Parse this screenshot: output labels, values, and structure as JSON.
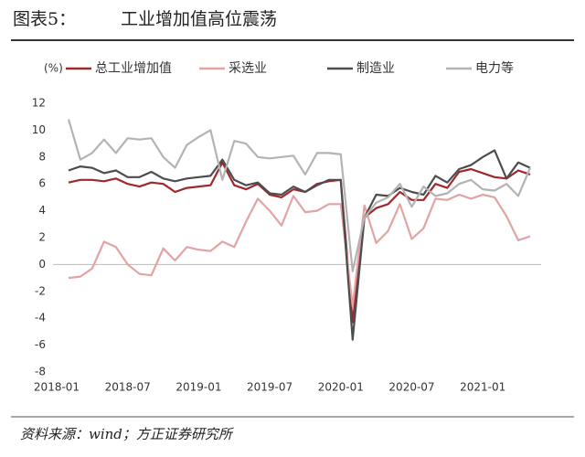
{
  "header": {
    "label": "图表5：",
    "title": "工业增加值高位震荡"
  },
  "chart_data": {
    "type": "line",
    "unit_label": "(%)",
    "categories": [
      "2018-01",
      null,
      null,
      null,
      null,
      null,
      "2018-07",
      null,
      null,
      null,
      null,
      null,
      "2019-01",
      null,
      null,
      null,
      null,
      null,
      "2019-07",
      null,
      null,
      null,
      null,
      null,
      "2020-01",
      null,
      null,
      null,
      null,
      null,
      "2020-07",
      null,
      null,
      null,
      null,
      null,
      "2021-01",
      null,
      null,
      null,
      null
    ],
    "series": [
      {
        "name": "总工业增加值",
        "color": "#a0282c",
        "values": [
          null,
          6.1,
          6.3,
          6.3,
          6.2,
          6.4,
          6.0,
          5.8,
          6.1,
          6.0,
          5.4,
          5.7,
          5.8,
          5.9,
          7.6,
          5.9,
          5.6,
          6.0,
          5.2,
          5.0,
          5.6,
          5.4,
          6.0,
          6.2,
          6.3,
          -4.3,
          3.5,
          4.2,
          4.5,
          5.4,
          4.8,
          4.8,
          6.0,
          5.7,
          6.9,
          7.1,
          6.8,
          6.5,
          6.4,
          7.0,
          6.7
        ]
      },
      {
        "name": "采选业",
        "color": "#e2a3a3",
        "values": [
          null,
          -1.0,
          -0.9,
          -0.3,
          1.7,
          1.3,
          0.0,
          -0.7,
          -0.8,
          1.2,
          0.3,
          1.3,
          1.1,
          1.0,
          1.7,
          1.3,
          3.2,
          4.9,
          4.0,
          2.9,
          5.1,
          3.9,
          4.0,
          4.5,
          4.5,
          -3.1,
          4.4,
          1.6,
          2.5,
          4.5,
          1.9,
          2.7,
          4.9,
          4.8,
          5.2,
          4.9,
          5.2,
          5.0,
          3.6,
          1.8,
          2.1
        ]
      },
      {
        "name": "制造业",
        "color": "#4d4d4f",
        "values": [
          null,
          7.0,
          7.3,
          7.2,
          6.8,
          7.0,
          6.5,
          6.5,
          6.9,
          6.4,
          6.2,
          6.4,
          6.5,
          6.6,
          7.8,
          6.3,
          5.9,
          6.1,
          5.3,
          5.2,
          5.8,
          5.4,
          5.9,
          6.3,
          6.3,
          -5.6,
          3.5,
          5.2,
          5.1,
          5.7,
          5.4,
          5.2,
          6.6,
          6.1,
          7.1,
          7.4,
          8.0,
          8.5,
          6.4,
          7.6,
          7.2
        ]
      },
      {
        "name": "电力等",
        "color": "#b3b3b3",
        "values": [
          null,
          10.8,
          7.8,
          8.3,
          9.3,
          8.3,
          9.4,
          9.3,
          9.4,
          8.0,
          7.2,
          8.9,
          9.5,
          10.0,
          6.3,
          9.2,
          9.0,
          8.0,
          7.9,
          8.0,
          8.1,
          6.7,
          8.3,
          8.3,
          8.2,
          -0.5,
          3.5,
          4.6,
          5.0,
          6.0,
          4.3,
          5.8,
          5.1,
          5.3,
          6.0,
          6.3,
          5.6,
          5.5,
          6.0,
          5.1,
          7.2
        ]
      }
    ],
    "ylim": [
      -8,
      12
    ],
    "yticks": [
      -8,
      -6,
      -4,
      -2,
      0,
      2,
      4,
      6,
      8,
      10,
      12
    ],
    "grid": false
  },
  "footer": {
    "source": "资料来源：wind；方正证券研究所"
  }
}
